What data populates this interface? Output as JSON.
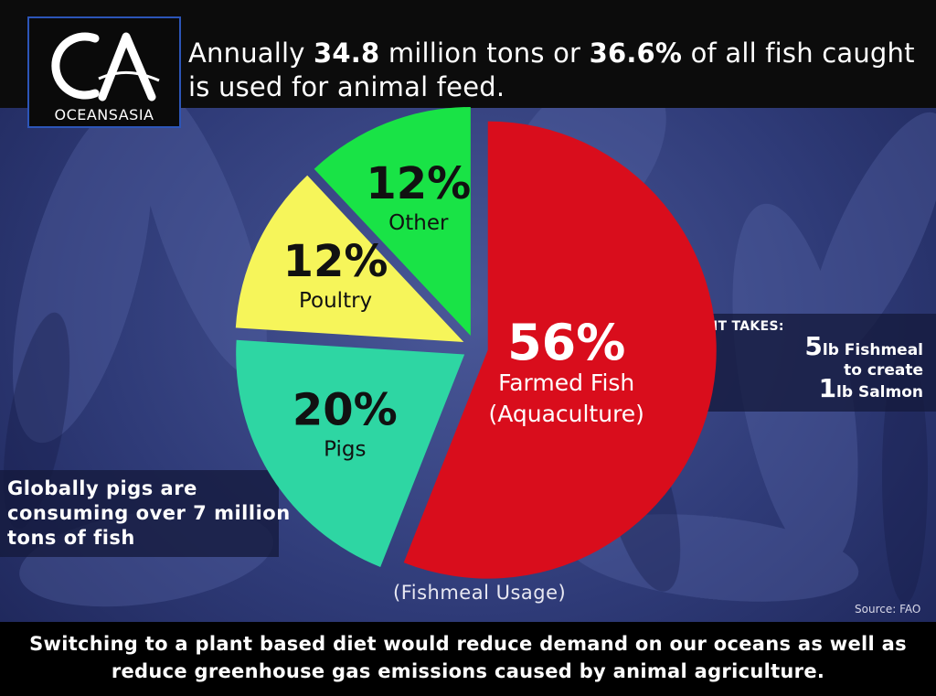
{
  "brand": {
    "logo_text": "OCEANSASIA"
  },
  "headline": {
    "pre": "Annually ",
    "amount": "34.8",
    "mid": " million tons or ",
    "percent": "36.6%",
    "post": "  of all fish caught is used for animal feed."
  },
  "chart_data": {
    "type": "pie",
    "title": "",
    "caption": "(Fishmeal Usage)",
    "start_angle_deg": 0,
    "direction": "clockwise",
    "slices": [
      {
        "label": "Farmed Fish",
        "sublabel": "(Aquaculture)",
        "value": 56,
        "pct_label": "56%",
        "color": "#d90d1c",
        "text_color": "#ffffff",
        "explode": 1.0
      },
      {
        "label": "Pigs",
        "sublabel": "",
        "value": 20,
        "pct_label": "20%",
        "color": "#2ed6a3",
        "text_color": "#111111",
        "explode": 1.0
      },
      {
        "label": "Poultry",
        "sublabel": "",
        "value": 12,
        "pct_label": "12%",
        "color": "#f6f55a",
        "text_color": "#111111",
        "explode": 1.0
      },
      {
        "label": "Other",
        "sublabel": "",
        "value": 12,
        "pct_label": "12%",
        "color": "#19e346",
        "text_color": "#111111",
        "explode": 1.0
      }
    ]
  },
  "takes": {
    "heading": "IT TAKES:",
    "line1_num": "5",
    "line1_text": "lb Fishmeal",
    "line2_text": "to create",
    "line3_num": "1",
    "line3_text": "lb Salmon"
  },
  "pigs_note": "Globally pigs are consuming over 7 million tons of fish",
  "source": "Source: FAO",
  "footer": "Switching to a plant based diet would reduce demand on our oceans as well as reduce greenhouse gas emissions caused by animal agriculture.",
  "colors": {
    "header_bg": "#0c0c0c",
    "logo_border": "#2c55b8",
    "background": "#2f3b78",
    "footer_bg": "#000000"
  }
}
